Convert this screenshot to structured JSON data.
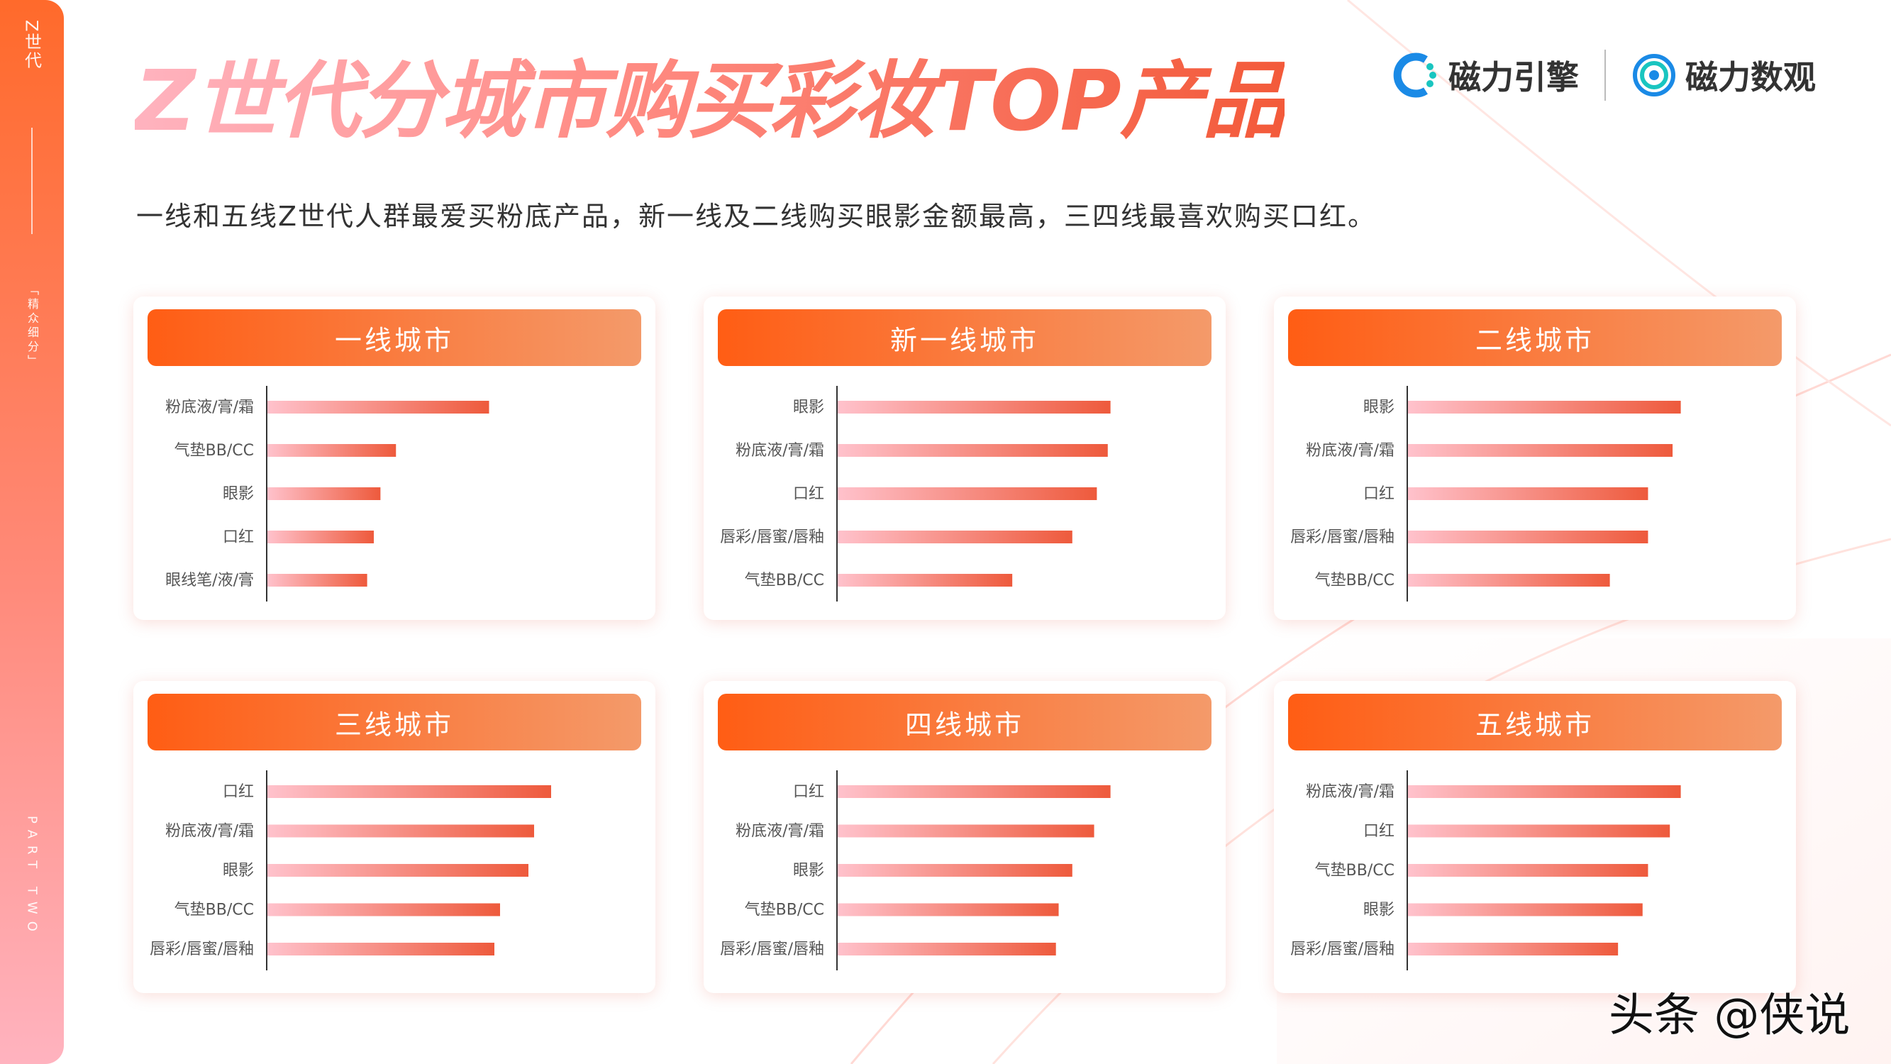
{
  "sidebar": {
    "top_text": "Z世代",
    "mid_text": "「精众细分」",
    "bottom_text": "PART TWO"
  },
  "header": {
    "title": "Z世代分城市购买彩妆TOP产品",
    "subtitle": "一线和五线Z世代人群最爱买粉底产品，新一线及二线购买眼影金额最高，三四线最喜欢购买口红。"
  },
  "logos": {
    "left": "磁力引擎",
    "right": "磁力数观"
  },
  "watermark": "头条 @侠说",
  "colors": {
    "accent": "#ff5d14",
    "bar_start": "#ffc2cc",
    "bar_end": "#ee5a3c",
    "axis": "#333333"
  },
  "chart_data": [
    {
      "type": "bar",
      "orientation": "horizontal",
      "title": "一线城市",
      "categories": [
        "粉底液/膏/霜",
        "气垫BB/CC",
        "眼影",
        "口红",
        "眼线笔/液/膏"
      ],
      "values": [
        100,
        58,
        51,
        48,
        45
      ],
      "xlim": [
        0,
        160
      ]
    },
    {
      "type": "bar",
      "orientation": "horizontal",
      "title": "新一线城市",
      "categories": [
        "眼影",
        "粉底液/膏/霜",
        "口红",
        "唇彩/唇蜜/唇釉",
        "气垫BB/CC"
      ],
      "values": [
        100,
        99,
        95,
        86,
        64
      ],
      "xlim": [
        0,
        130
      ]
    },
    {
      "type": "bar",
      "orientation": "horizontal",
      "title": "二线城市",
      "categories": [
        "眼影",
        "粉底液/膏/霜",
        "口红",
        "唇彩/唇蜜/唇釉",
        "气垫BB/CC"
      ],
      "values": [
        100,
        97,
        88,
        88,
        74
      ],
      "xlim": [
        0,
        130
      ]
    },
    {
      "type": "bar",
      "orientation": "horizontal",
      "title": "三线城市",
      "categories": [
        "口红",
        "粉底液/膏/霜",
        "眼影",
        "气垫BB/CC",
        "唇彩/唇蜜/唇釉"
      ],
      "values": [
        100,
        94,
        92,
        82,
        80
      ],
      "xlim": [
        0,
        125
      ]
    },
    {
      "type": "bar",
      "orientation": "horizontal",
      "title": "四线城市",
      "categories": [
        "口红",
        "粉底液/膏/霜",
        "眼影",
        "气垫BB/CC",
        "唇彩/唇蜜/唇釉"
      ],
      "values": [
        100,
        94,
        86,
        81,
        80
      ],
      "xlim": [
        0,
        130
      ]
    },
    {
      "type": "bar",
      "orientation": "horizontal",
      "title": "五线城市",
      "categories": [
        "粉底液/膏/霜",
        "口红",
        "气垫BB/CC",
        "眼影",
        "唇彩/唇蜜/唇釉"
      ],
      "values": [
        100,
        96,
        88,
        86,
        77
      ],
      "xlim": [
        0,
        130
      ]
    }
  ]
}
